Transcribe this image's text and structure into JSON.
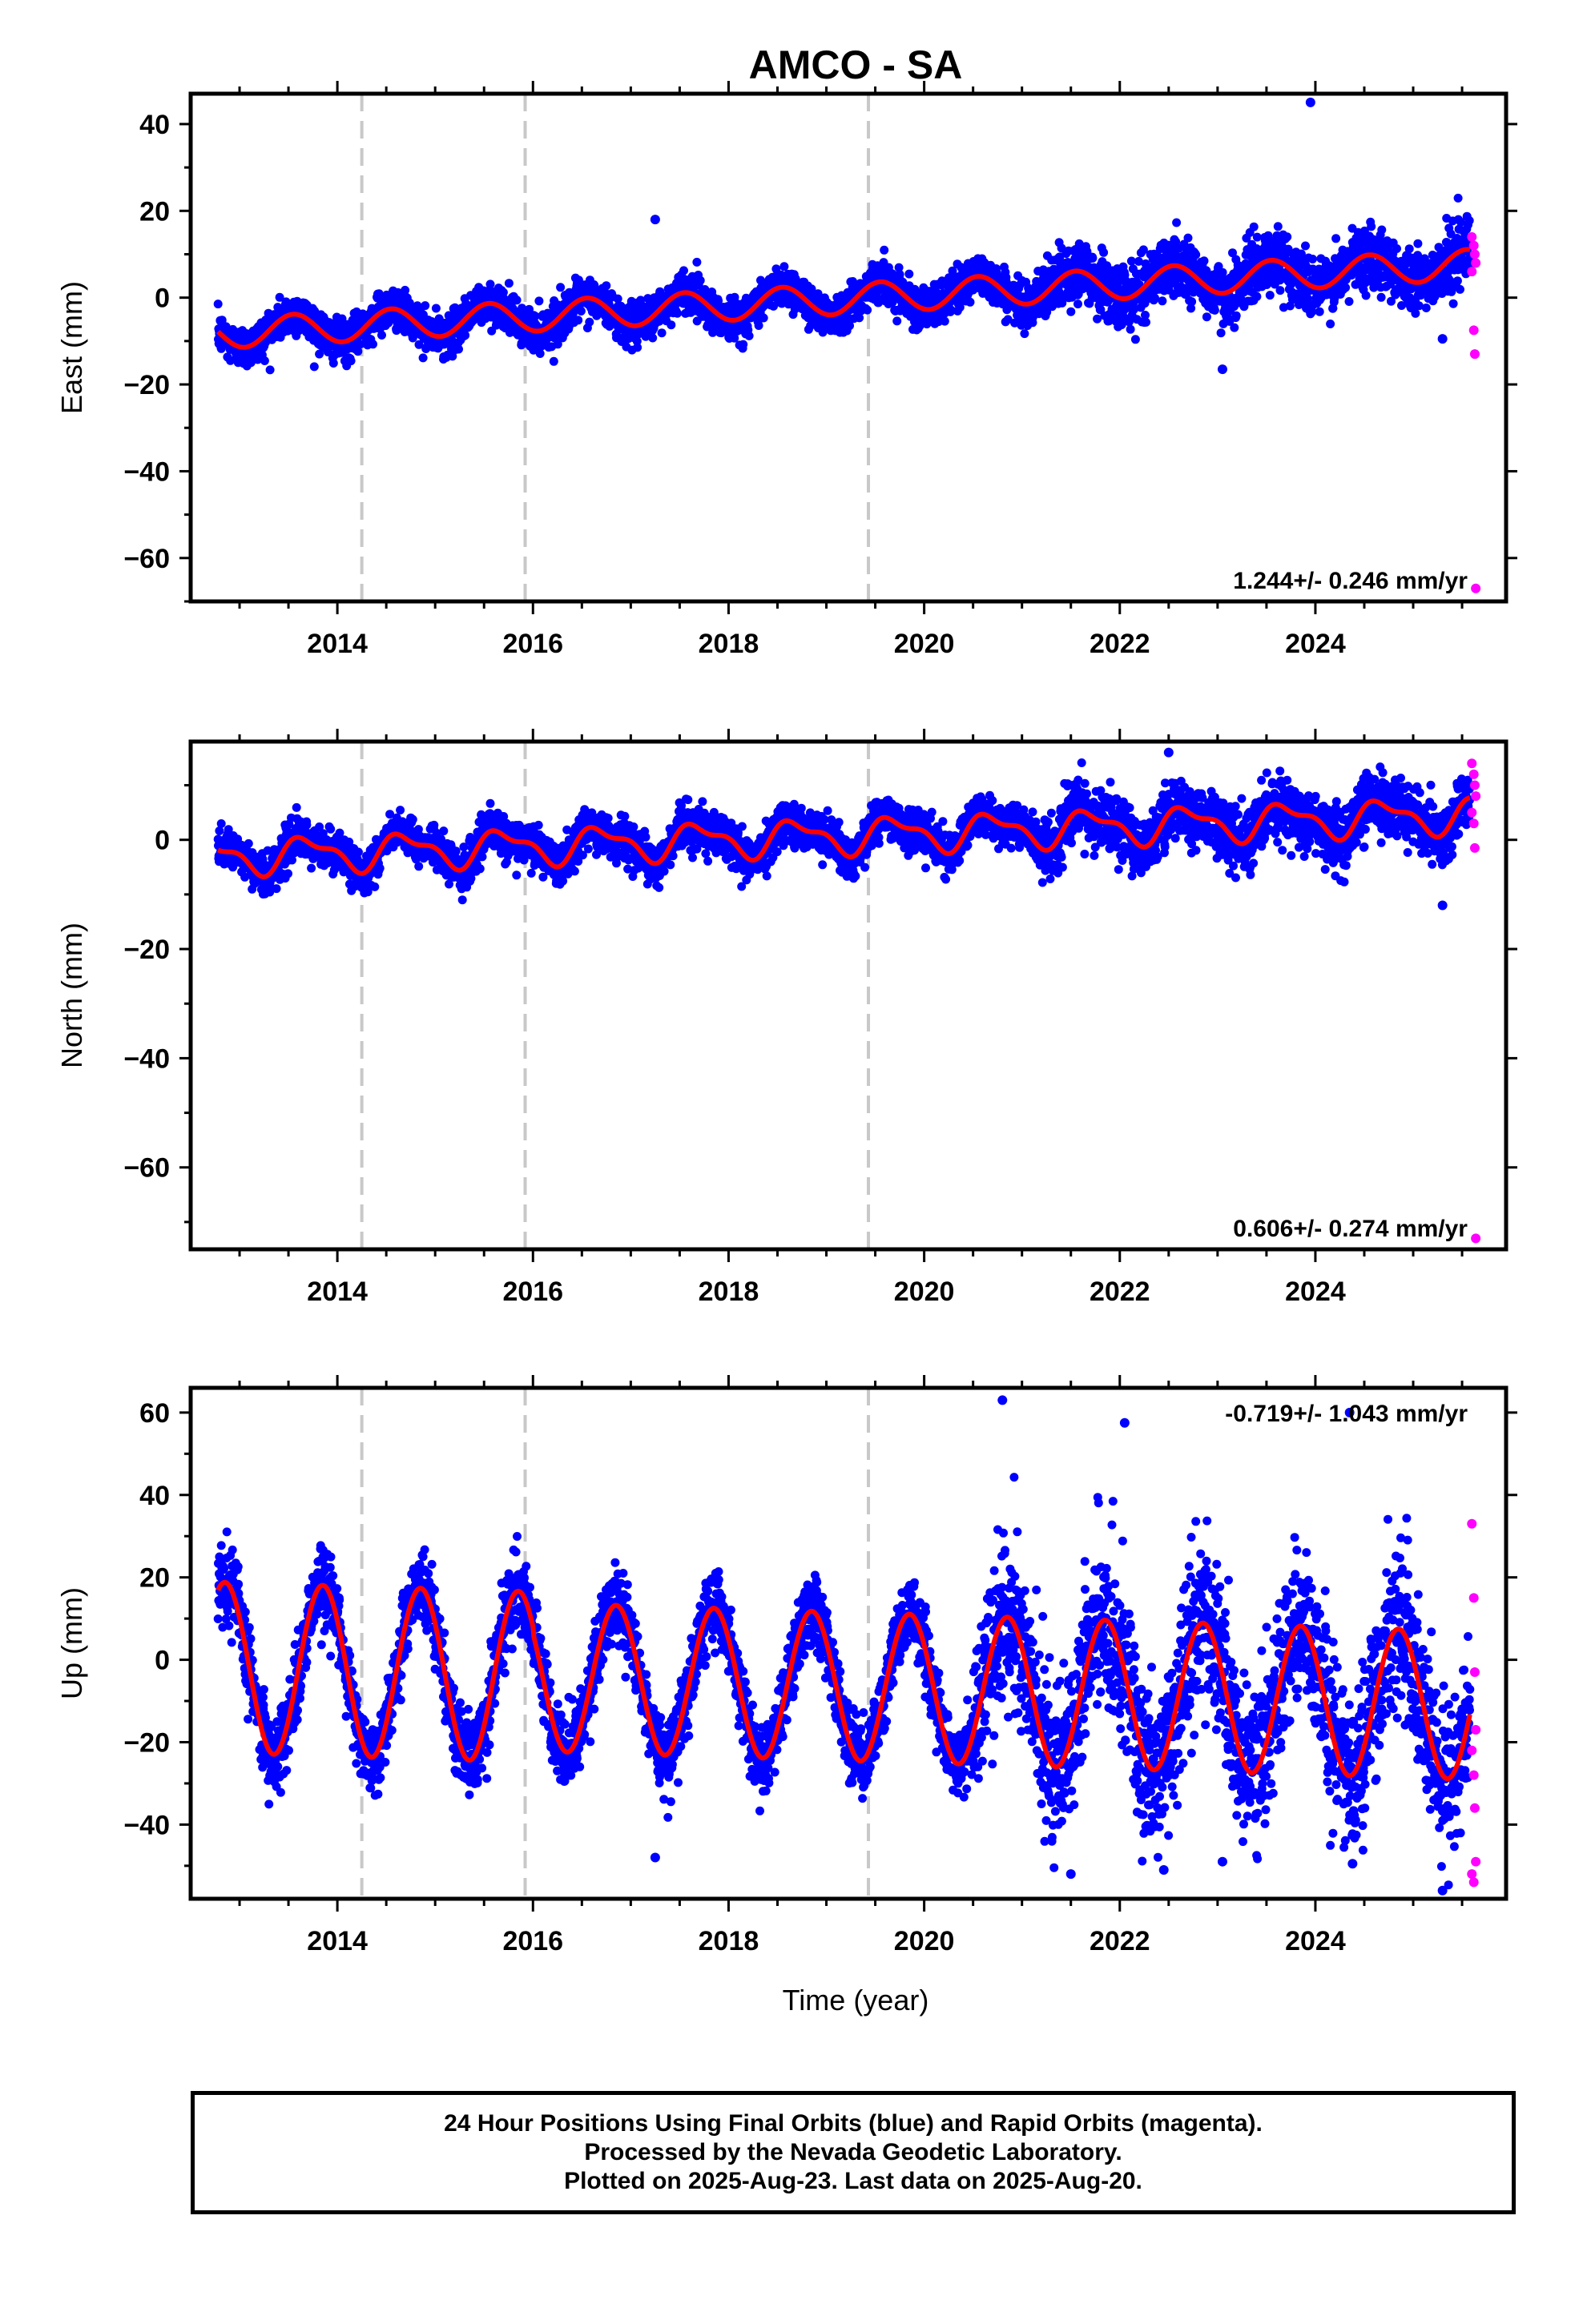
{
  "title": "AMCO - SA",
  "colors": {
    "final": "#0000ff",
    "rapid": "#ff00ff",
    "model": "#ff0000",
    "event": "#c8c8c8",
    "frame": "#000000"
  },
  "x_range": [
    2012.5,
    2025.95
  ],
  "x_ticks": [
    "2014",
    "2016",
    "2018",
    "2020",
    "2022",
    "2024"
  ],
  "xlabel": "Time (year)",
  "event_years": [
    2014.25,
    2015.92,
    2019.43
  ],
  "chart_data": [
    {
      "type": "scatter",
      "name": "east",
      "ylabel": "East (mm)",
      "ylim": [
        -70,
        47
      ],
      "yticks": [
        "40",
        "20",
        "0",
        "−20",
        "−40",
        "−60"
      ],
      "ytick_values": [
        40,
        20,
        0,
        -20,
        -40,
        -60
      ],
      "rate_label": "1.244+/- 0.246 mm/yr",
      "rate_position": "bottom-right",
      "model": {
        "offset": -8.0,
        "rate": 1.244,
        "amp": 3.5,
        "phase": 0.3,
        "sigma": 2.3
      },
      "outliers": [
        {
          "x": 2023.95,
          "y": 45
        },
        {
          "x": 2017.25,
          "y": 18
        },
        {
          "x": 2023.05,
          "y": -16.5
        },
        {
          "x": 2025.3,
          "y": -9.5
        }
      ],
      "rapid_points": [
        {
          "x": 2025.6,
          "y": 14
        },
        {
          "x": 2025.62,
          "y": 12
        },
        {
          "x": 2025.63,
          "y": 10
        },
        {
          "x": 2025.64,
          "y": 8
        },
        {
          "x": 2025.6,
          "y": 6
        },
        {
          "x": 2025.62,
          "y": -7.5
        },
        {
          "x": 2025.63,
          "y": -13
        },
        {
          "x": 2025.64,
          "y": -67
        }
      ]
    },
    {
      "type": "scatter",
      "name": "north",
      "ylabel": "North (mm)",
      "ylim": [
        -75,
        18
      ],
      "yticks": [
        "0",
        "−20",
        "−40",
        "−60"
      ],
      "ytick_values": [
        0,
        -20,
        -40,
        -60
      ],
      "rate_label": "0.606+/- 0.274 mm/yr",
      "rate_position": "bottom-right",
      "model": {
        "offset": -3.0,
        "rate": 0.606,
        "amp": 3.6,
        "phase": 0.45,
        "sigma": 1.8
      },
      "outliers": [
        {
          "x": 2025.3,
          "y": -12
        },
        {
          "x": 2022.5,
          "y": 16
        }
      ],
      "rapid_points": [
        {
          "x": 2025.6,
          "y": 14
        },
        {
          "x": 2025.62,
          "y": 12
        },
        {
          "x": 2025.63,
          "y": 10
        },
        {
          "x": 2025.64,
          "y": 8
        },
        {
          "x": 2025.6,
          "y": 5
        },
        {
          "x": 2025.62,
          "y": 3
        },
        {
          "x": 2025.63,
          "y": -1.5
        },
        {
          "x": 2025.64,
          "y": -73
        }
      ]
    },
    {
      "type": "scatter",
      "name": "up",
      "ylabel": "Up (mm)",
      "ylim": [
        -58,
        66
      ],
      "yticks": [
        "60",
        "40",
        "20",
        "0",
        "−20",
        "−40"
      ],
      "ytick_values": [
        60,
        40,
        20,
        0,
        -20,
        -40
      ],
      "rate_label": "-0.719+/- 1.043 mm/yr",
      "rate_position": "top-right",
      "model": {
        "offset": -2.0,
        "rate": -0.719,
        "amp": 18.0,
        "phase": 0.6,
        "sigma": 4.5
      },
      "outliers": [
        {
          "x": 2020.8,
          "y": 63
        },
        {
          "x": 2022.05,
          "y": 57.5
        },
        {
          "x": 2024.35,
          "y": 60
        },
        {
          "x": 2017.25,
          "y": -48
        },
        {
          "x": 2021.5,
          "y": -52
        },
        {
          "x": 2022.45,
          "y": -51
        },
        {
          "x": 2023.05,
          "y": -49
        },
        {
          "x": 2024.38,
          "y": -49.5
        },
        {
          "x": 2025.3,
          "y": -56
        }
      ],
      "rapid_points": [
        {
          "x": 2025.6,
          "y": 33
        },
        {
          "x": 2025.62,
          "y": 15
        },
        {
          "x": 2025.63,
          "y": -3
        },
        {
          "x": 2025.64,
          "y": -17
        },
        {
          "x": 2025.6,
          "y": -22
        },
        {
          "x": 2025.62,
          "y": -28
        },
        {
          "x": 2025.63,
          "y": -36
        },
        {
          "x": 2025.64,
          "y": -49
        },
        {
          "x": 2025.6,
          "y": -52
        },
        {
          "x": 2025.62,
          "y": -54
        }
      ]
    }
  ],
  "caption": {
    "line1": "24 Hour Positions Using Final Orbits (blue) and Rapid Orbits (magenta).",
    "line2": "Processed by the Nevada Geodetic Laboratory.",
    "line3": "Plotted on 2025-Aug-23. Last data on 2025-Aug-20."
  }
}
